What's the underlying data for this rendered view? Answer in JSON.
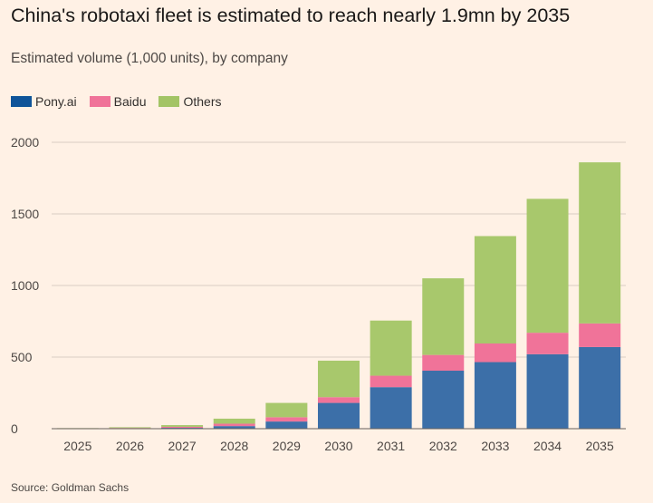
{
  "title": "China's robotaxi fleet is estimated to reach nearly 1.9mn by 2035",
  "subtitle": "Estimated volume (1,000 units), by company",
  "source": "Source: Goldman Sachs",
  "legend": [
    {
      "name": "Pony.ai",
      "color": "#0f5499"
    },
    {
      "name": "Baidu",
      "color": "#f07399"
    },
    {
      "name": "Others",
      "color": "#a3c465"
    }
  ],
  "chart_data": {
    "type": "bar",
    "stacked": true,
    "categories": [
      "2025",
      "2026",
      "2027",
      "2028",
      "2029",
      "2030",
      "2031",
      "2032",
      "2033",
      "2034",
      "2035"
    ],
    "series": [
      {
        "name": "Pony.ai",
        "color": "#3c6fa8",
        "values": [
          1,
          3,
          6,
          18,
          50,
          180,
          290,
          405,
          465,
          520,
          570
        ]
      },
      {
        "name": "Baidu",
        "color": "#f07399",
        "values": [
          1,
          2,
          7,
          17,
          30,
          40,
          80,
          110,
          130,
          150,
          165
        ]
      },
      {
        "name": "Others",
        "color": "#a8c86c",
        "values": [
          2,
          5,
          12,
          35,
          100,
          255,
          385,
          535,
          750,
          935,
          1125
        ]
      }
    ],
    "yticks": [
      0,
      500,
      1000,
      1500,
      2000
    ],
    "ylim": [
      0,
      2000
    ],
    "grid": true,
    "legend_position": "top-left"
  }
}
